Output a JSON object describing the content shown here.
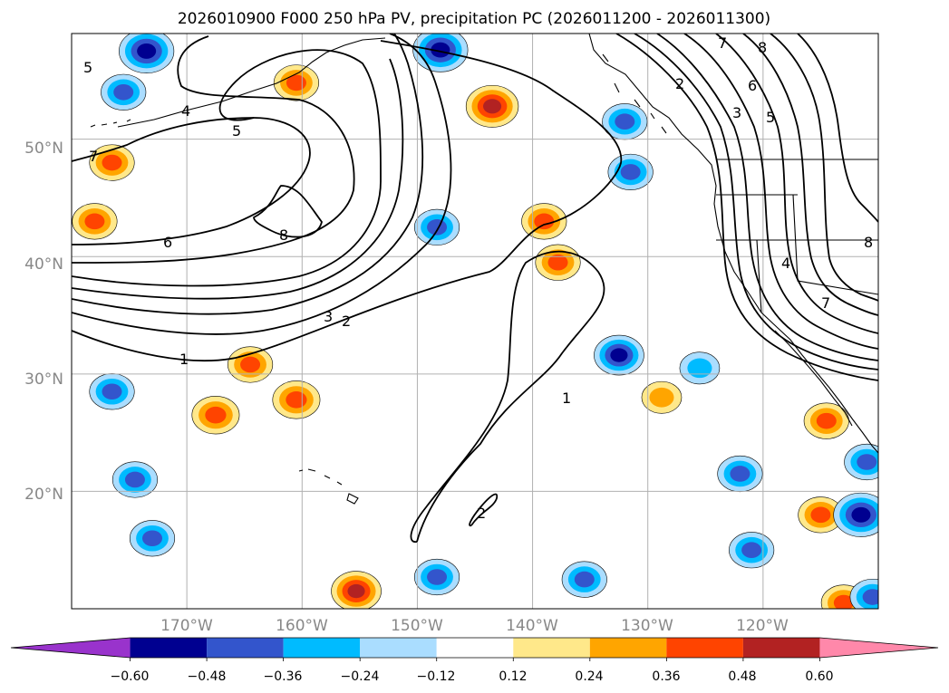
{
  "chart_data": {
    "type": "heatmap",
    "title": "2026010900 F000 250 hPa PV, precipitation PC (2026011200 - 2026011300)",
    "x_axis": {
      "ticks": [
        -170,
        -160,
        -150,
        -140,
        -130,
        -120
      ],
      "tick_labels": [
        "170°W",
        "160°W",
        "150°W",
        "140°W",
        "130°W",
        "120°W"
      ],
      "range": [
        -180,
        -110
      ]
    },
    "y_axis": {
      "ticks": [
        20,
        30,
        40,
        50
      ],
      "tick_labels": [
        "20°N",
        "30°N",
        "40°N",
        "50°N"
      ],
      "range": [
        10,
        59
      ]
    },
    "grid": true,
    "colorbar": {
      "orientation": "horizontal",
      "extend": "both",
      "levels": [
        -0.6,
        -0.48,
        -0.36,
        -0.24,
        -0.12,
        0.12,
        0.24,
        0.36,
        0.48,
        0.6
      ],
      "tick_labels": [
        "−0.60",
        "−0.48",
        "−0.36",
        "−0.24",
        "−0.12",
        "0.12",
        "0.24",
        "0.36",
        "0.48",
        "0.60"
      ],
      "colors": [
        "#9933cc",
        "#000090",
        "#3355cc",
        "#00bbff",
        "#aaddff",
        "#ffffff",
        "#ffe88a",
        "#ffa500",
        "#ff4400",
        "#b22222",
        "#ff88aa"
      ]
    },
    "pv_contour_labels": [
      "1",
      "2",
      "3",
      "4",
      "5",
      "6",
      "7",
      "8"
    ],
    "precip_blobs": [
      {
        "lon": -176.5,
        "lat": 28.5,
        "value": -0.4
      },
      {
        "lon": -173.5,
        "lat": 57.5,
        "value": -0.6
      },
      {
        "lon": -175.5,
        "lat": 54.0,
        "value": -0.4
      },
      {
        "lon": -167.5,
        "lat": 26.5,
        "value": 0.45
      },
      {
        "lon": -160.5,
        "lat": 27.8,
        "value": 0.45
      },
      {
        "lon": -164.5,
        "lat": 30.8,
        "value": 0.4
      },
      {
        "lon": -160.5,
        "lat": 54.8,
        "value": 0.4
      },
      {
        "lon": -174.5,
        "lat": 21.0,
        "value": -0.4
      },
      {
        "lon": -173.0,
        "lat": 16.0,
        "value": -0.4
      },
      {
        "lon": -176.5,
        "lat": 48.0,
        "value": 0.4
      },
      {
        "lon": -178.0,
        "lat": 43.0,
        "value": 0.4
      },
      {
        "lon": -148.0,
        "lat": 57.6,
        "value": -0.6
      },
      {
        "lon": -143.5,
        "lat": 52.8,
        "value": 0.55
      },
      {
        "lon": -148.3,
        "lat": 42.5,
        "value": -0.4
      },
      {
        "lon": -137.8,
        "lat": 39.5,
        "value": 0.4
      },
      {
        "lon": -139.0,
        "lat": 43.0,
        "value": 0.4
      },
      {
        "lon": -132.0,
        "lat": 51.5,
        "value": -0.4
      },
      {
        "lon": -131.5,
        "lat": 47.2,
        "value": -0.4
      },
      {
        "lon": -132.5,
        "lat": 31.6,
        "value": -0.5
      },
      {
        "lon": -125.5,
        "lat": 30.5,
        "value": -0.3
      },
      {
        "lon": -128.8,
        "lat": 28.0,
        "value": 0.3
      },
      {
        "lon": -122.0,
        "lat": 21.5,
        "value": -0.4
      },
      {
        "lon": -121.0,
        "lat": 15.0,
        "value": -0.4
      },
      {
        "lon": -115.0,
        "lat": 18.0,
        "value": 0.4
      },
      {
        "lon": -114.5,
        "lat": 26.0,
        "value": 0.4
      },
      {
        "lon": -111.5,
        "lat": 18.0,
        "value": -0.6
      },
      {
        "lon": -111.0,
        "lat": 22.5,
        "value": -0.4
      },
      {
        "lon": -155.3,
        "lat": 11.5,
        "value": 0.5
      },
      {
        "lon": -148.3,
        "lat": 12.7,
        "value": -0.4
      },
      {
        "lon": -135.5,
        "lat": 12.5,
        "value": -0.4
      },
      {
        "lon": -113.0,
        "lat": 10.5,
        "value": 0.4
      },
      {
        "lon": -110.5,
        "lat": 11.0,
        "value": -0.4
      }
    ]
  }
}
